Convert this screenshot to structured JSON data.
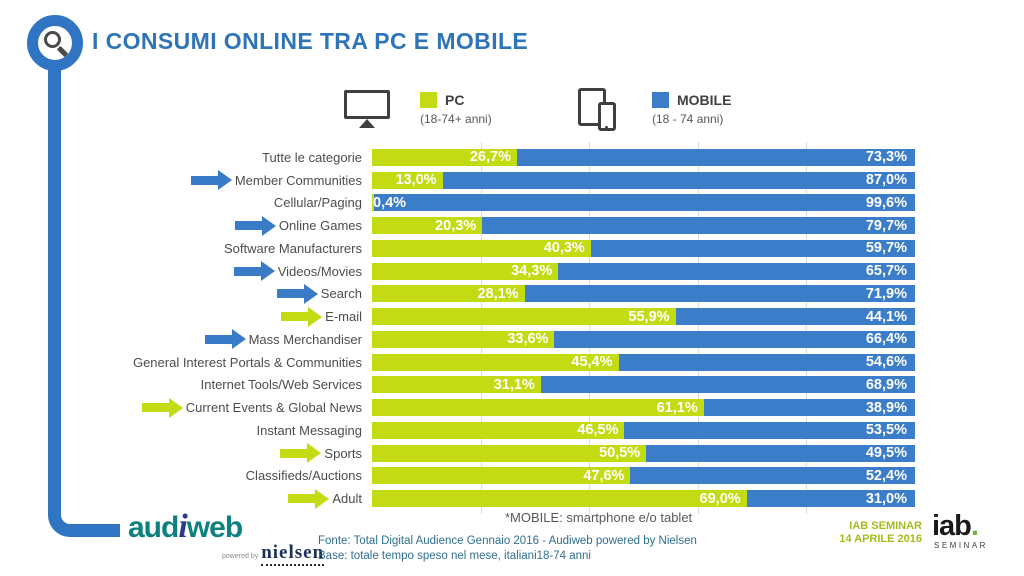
{
  "header": {
    "title": "I CONSUMI ONLINE TRA PC E MOBILE"
  },
  "legend": {
    "pc": {
      "label": "PC",
      "sublabel": "(18-74+ anni)",
      "color": "#c3db12"
    },
    "mobile": {
      "label": "MOBILE",
      "sublabel": "(18 - 74 anni)",
      "color": "#3c7dca"
    }
  },
  "chart_data": {
    "type": "bar",
    "orientation": "horizontal",
    "stacked": true,
    "title": "I CONSUMI ONLINE TRA PC E MOBILE",
    "categories": [
      "Tutte le categorie",
      "Member Communities",
      "Cellular/Paging",
      "Online Games",
      "Software Manufacturers",
      "Videos/Movies",
      "Search",
      "E-mail",
      "Mass Merchandiser",
      "General Interest Portals & Communities",
      "Internet Tools/Web Services",
      "Current Events & Global News",
      "Instant Messaging",
      "Sports",
      "Classifieds/Auctions",
      "Adult"
    ],
    "series": [
      {
        "name": "PC",
        "color": "#c3db12",
        "values": [
          26.7,
          13.0,
          0.4,
          20.3,
          40.3,
          34.3,
          28.1,
          55.9,
          33.6,
          45.4,
          31.1,
          61.1,
          46.5,
          50.5,
          47.6,
          69.0
        ],
        "value_labels": [
          "26,7%",
          "13,0%",
          "0,4%",
          "20,3%",
          "40,3%",
          "34,3%",
          "28,1%",
          "55,9%",
          "33,6%",
          "45,4%",
          "31,1%",
          "61,1%",
          "46,5%",
          "50,5%",
          "47,6%",
          "69,0%"
        ]
      },
      {
        "name": "MOBILE",
        "color": "#3c7dca",
        "values": [
          73.3,
          87.0,
          99.6,
          79.7,
          59.7,
          65.7,
          71.9,
          44.1,
          66.4,
          54.6,
          68.9,
          38.9,
          53.5,
          49.5,
          52.4,
          31.0
        ],
        "value_labels": [
          "73,3%",
          "87,0%",
          "99,6%",
          "79,7%",
          "59,7%",
          "65,7%",
          "71,9%",
          "44,1%",
          "66,4%",
          "54,6%",
          "68,9%",
          "38,9%",
          "53,5%",
          "49,5%",
          "52,4%",
          "31,0%"
        ]
      }
    ],
    "highlight_arrows": [
      "none",
      "blue",
      "none",
      "blue",
      "none",
      "blue",
      "blue",
      "green",
      "blue",
      "none",
      "none",
      "green",
      "none",
      "green",
      "none",
      "green"
    ],
    "xlim": [
      0,
      100
    ],
    "gridlines_pct": [
      20,
      40,
      60,
      80
    ],
    "legend_position": "top"
  },
  "footnote": "*MOBILE: smartphone e/o tablet",
  "source": {
    "line1": "Fonte: Total Digital Audience Gennaio 2016 - Audiweb powered by Nielsen",
    "line2": "Base: totale tempo speso nel mese, italiani18-74 anni"
  },
  "branding": {
    "audiweb_part1": "aud",
    "audiweb_i": "i",
    "audiweb_part2": "web",
    "powered_by": "powered by",
    "nielsen": "nielsen",
    "seminar_line1": "IAB SEMINAR",
    "seminar_line2": "14 APRILE 2016",
    "iab_word": "iab",
    "iab_dot": ".",
    "iab_sub": "SEMINAR"
  }
}
